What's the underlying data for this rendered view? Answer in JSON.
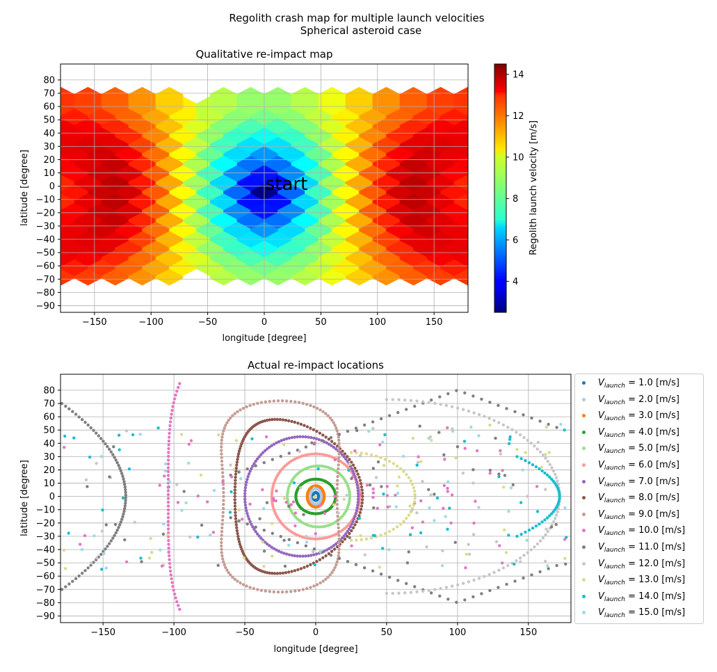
{
  "suptitle": "Regolith crash map for multiple launch velocities",
  "subtitle": "Spherical asteroid case",
  "chart_data": [
    {
      "type": "heatmap",
      "title": "Qualitative re-impact map",
      "xlabel": "longitude [degree]",
      "ylabel": "latitude [degree]",
      "xlim": [
        -180,
        180
      ],
      "ylim": [
        -95,
        92
      ],
      "xticks": [
        -150,
        -100,
        -50,
        0,
        50,
        100,
        150
      ],
      "yticks": [
        80,
        70,
        60,
        50,
        40,
        30,
        20,
        10,
        0,
        -10,
        -20,
        -30,
        -40,
        -50,
        -60,
        -70,
        -80,
        -90
      ],
      "grid": true,
      "annotation": {
        "text": "start",
        "x": 0,
        "y": 2
      },
      "colorbar": {
        "label": "Regolith launch velocity [m/s]",
        "range": [
          2.5,
          14.5
        ],
        "ticks": [
          4,
          6,
          8,
          10,
          12,
          14
        ],
        "colormap": "jet"
      }
    },
    {
      "type": "scatter",
      "title": "Actual re-impact locations",
      "xlabel": "longitude [degree]",
      "ylabel": "latitude [degree]",
      "xlim": [
        -180,
        180
      ],
      "ylim": [
        -95,
        92
      ],
      "xticks": [
        -150,
        -100,
        -50,
        0,
        50,
        100,
        150
      ],
      "yticks": [
        80,
        70,
        60,
        50,
        40,
        30,
        20,
        10,
        0,
        -10,
        -20,
        -30,
        -40,
        -50,
        -60,
        -70,
        -80,
        -90
      ],
      "grid": true,
      "legend_placement": "outside-right",
      "series": [
        {
          "name": "= 1.0 [m/s]",
          "v": 1.0,
          "color": "#1f77b4"
        },
        {
          "name": "= 2.0 [m/s]",
          "v": 2.0,
          "color": "#aec7e8"
        },
        {
          "name": "= 3.0 [m/s]",
          "v": 3.0,
          "color": "#ff7f0e"
        },
        {
          "name": "= 4.0 [m/s]",
          "v": 4.0,
          "color": "#2ca02c"
        },
        {
          "name": "= 5.0 [m/s]",
          "v": 5.0,
          "color": "#98df8a"
        },
        {
          "name": "= 6.0 [m/s]",
          "v": 6.0,
          "color": "#ff9896"
        },
        {
          "name": "= 7.0 [m/s]",
          "v": 7.0,
          "color": "#9467bd"
        },
        {
          "name": "= 8.0 [m/s]",
          "v": 8.0,
          "color": "#8c564b"
        },
        {
          "name": "= 9.0 [m/s]",
          "v": 9.0,
          "color": "#c49c94"
        },
        {
          "name": "= 10.0 [m/s]",
          "v": 10.0,
          "color": "#e377c2"
        },
        {
          "name": "= 11.0 [m/s]",
          "v": 11.0,
          "color": "#7f7f7f"
        },
        {
          "name": "= 12.0 [m/s]",
          "v": 12.0,
          "color": "#c7c7c7"
        },
        {
          "name": "= 13.0 [m/s]",
          "v": 13.0,
          "color": "#dbdb8d"
        },
        {
          "name": "= 14.0 [m/s]",
          "v": 14.0,
          "color": "#17becf"
        },
        {
          "name": "= 15.0 [m/s]",
          "v": 15.0,
          "color": "#9edae5"
        }
      ],
      "legend_symbol": "V",
      "legend_subscript": "launch"
    }
  ]
}
